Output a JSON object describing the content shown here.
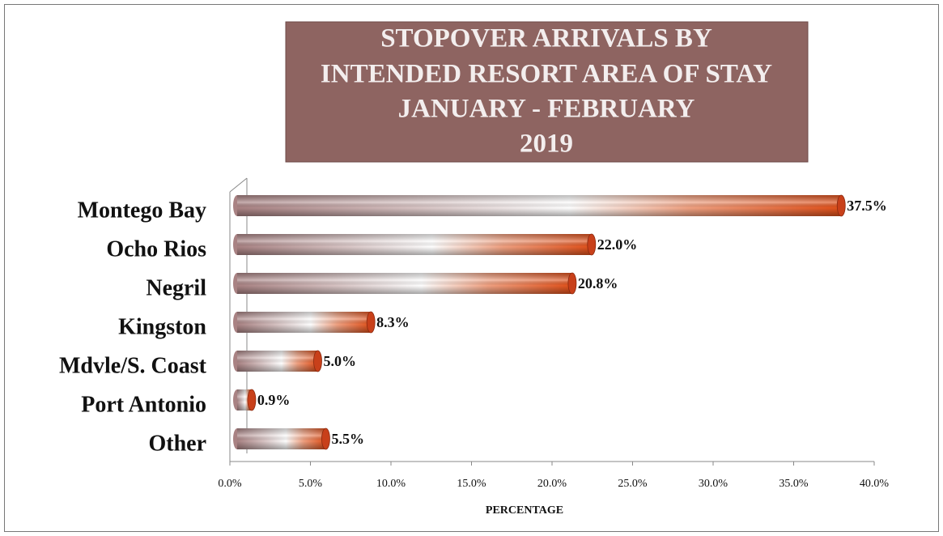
{
  "chart_data": {
    "type": "bar",
    "orientation": "horizontal",
    "title": [
      "STOPOVER ARRIVALS BY",
      "INTENDED RESORT AREA OF STAY",
      "JANUARY - FEBRUARY",
      "2019"
    ],
    "categories": [
      "Montego Bay",
      "Ocho Rios",
      "Negril",
      "Kingston",
      "Mdvle/S. Coast",
      "Port Antonio",
      "Other"
    ],
    "values": [
      37.5,
      22.0,
      20.8,
      8.3,
      5.0,
      0.9,
      5.5
    ],
    "value_labels": [
      "37.5%",
      "22.0%",
      "20.8%",
      "8.3%",
      "5.0%",
      "0.9%",
      "5.5%"
    ],
    "color": "#e0501a",
    "xlabel": "PERCENTAGE",
    "xlim": [
      0,
      40
    ],
    "xticks": [
      {
        "value": 0,
        "label": "0.0%"
      },
      {
        "value": 5,
        "label": "5.0%"
      },
      {
        "value": 10,
        "label": "10.0%"
      },
      {
        "value": 15,
        "label": "15.0%"
      },
      {
        "value": 20,
        "label": "20.0%"
      },
      {
        "value": 25,
        "label": "25.0%"
      },
      {
        "value": 30,
        "label": "30.0%"
      },
      {
        "value": 35,
        "label": "35.0%"
      },
      {
        "value": 40,
        "label": "40.0%"
      }
    ],
    "grid": false
  }
}
